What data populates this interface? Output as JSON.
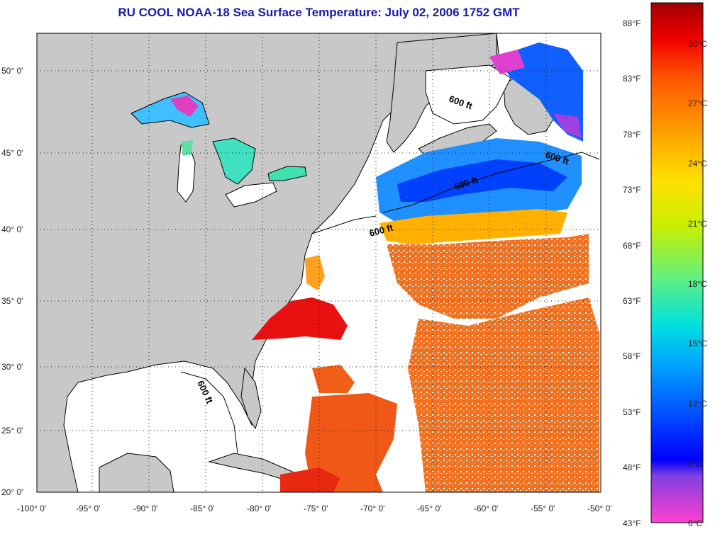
{
  "title": "RU COOL  NOAA-18  Sea Surface Temperature:  July 02, 2006 1752 GMT",
  "map": {
    "lat_labels": [
      "50° 0'",
      "45° 0'",
      "40° 0'",
      "35° 0'",
      "30° 0'",
      "25° 0'",
      "20° 0'"
    ],
    "lon_labels": [
      "-100° 0'",
      "-95° 0'",
      "-90° 0'",
      "-85° 0'",
      "-80° 0'",
      "-75° 0'",
      "-70° 0'",
      "-65° 0'",
      "-60° 0'",
      "-55° 0'",
      "-50° 0'"
    ],
    "contour_labels": [
      "600 ft",
      "600 ft",
      "600 ft",
      "600 ft",
      "600 ft"
    ]
  },
  "colorbar": {
    "fahrenheit": [
      "88°F",
      "83°F",
      "78°F",
      "73°F",
      "68°F",
      "63°F",
      "58°F",
      "53°F",
      "48°F",
      "43°F"
    ],
    "celsius": [
      "30°C",
      "27°C",
      "24°C",
      "21°C",
      "18°C",
      "15°C",
      "12°C",
      "9°C",
      "6°C"
    ]
  },
  "colors": {
    "land": "#c8c8c8",
    "ocean_nodata": "#ffffff",
    "title": "#1a1aa8"
  }
}
